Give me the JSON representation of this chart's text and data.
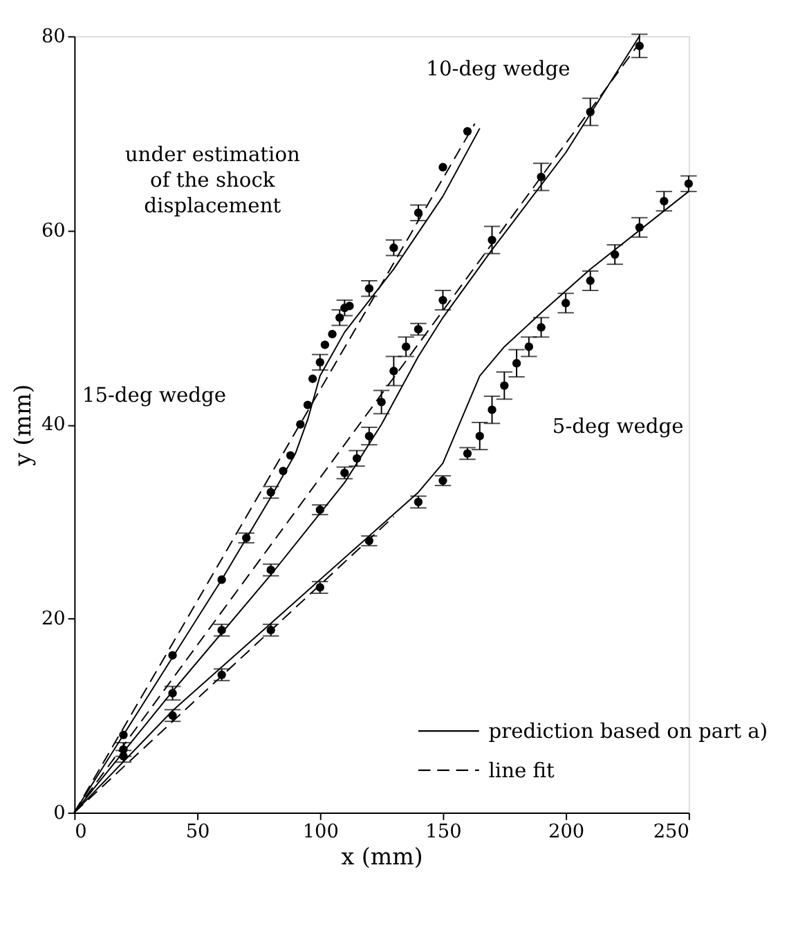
{
  "chart_data": {
    "type": "scatter",
    "xlabel": "x (mm)",
    "ylabel": "y (mm)",
    "xlim": [
      0,
      250
    ],
    "ylim": [
      0,
      80
    ],
    "xticks": [
      0,
      50,
      100,
      150,
      200,
      250
    ],
    "yticks": [
      0,
      20,
      40,
      60,
      80
    ],
    "grid": false,
    "legend": "bottom right",
    "series": [
      {
        "color": "#000000",
        "marker": "circle",
        "x": [
          20,
          40,
          60,
          70,
          80,
          85,
          88,
          92,
          95,
          97,
          100,
          102,
          105,
          108,
          110,
          112,
          120,
          130,
          140,
          150,
          160
        ],
        "values": [
          8,
          16.2,
          24,
          28.3,
          33,
          35.2,
          36.8,
          40,
          42,
          44.7,
          46.4,
          48.2,
          49.3,
          51,
          52,
          52.2,
          54,
          58.2,
          61.8,
          66.5,
          70.2
        ],
        "errors": [
          null,
          null,
          null,
          0.5,
          0.6,
          null,
          null,
          null,
          null,
          null,
          0.8,
          null,
          null,
          0.8,
          0.8,
          null,
          0.8,
          0.8,
          0.8,
          null,
          null
        ]
      },
      {
        "color": "#000000",
        "marker": "circle",
        "x": [
          20,
          40,
          60,
          80,
          100,
          110,
          115,
          120,
          125,
          130,
          135,
          140,
          150,
          170,
          190,
          210,
          230
        ],
        "values": [
          6.5,
          12.3,
          18.8,
          25,
          31.2,
          35,
          36.5,
          38.8,
          42.3,
          45.5,
          48,
          49.8,
          52.8,
          59,
          65.5,
          72.2,
          79
        ],
        "errors": [
          0.7,
          0.7,
          0.6,
          0.6,
          0.5,
          0.6,
          0.8,
          0.9,
          1.2,
          1.5,
          1,
          0.6,
          1,
          1.4,
          1.4,
          1.4,
          1.2
        ]
      },
      {
        "color": "#000000",
        "marker": "circle",
        "x": [
          20,
          40,
          60,
          80,
          100,
          120,
          140,
          150,
          160,
          165,
          170,
          175,
          180,
          185,
          190,
          200,
          210,
          220,
          230,
          240,
          250
        ],
        "values": [
          5.8,
          10,
          14.2,
          18.8,
          23.2,
          28,
          32,
          34.2,
          37,
          38.8,
          41.5,
          44,
          46.3,
          48,
          50,
          52.5,
          54.8,
          57.5,
          60.3,
          63,
          64.8
        ],
        "errors": [
          0.6,
          0.6,
          0.6,
          0.6,
          0.6,
          0.5,
          0.6,
          0.5,
          0.6,
          1.4,
          1.4,
          1.4,
          1.4,
          1,
          1,
          1,
          1,
          1,
          1,
          1,
          0.8
        ]
      },
      {
        "type": "line",
        "name": "prediction based on part a)",
        "color": "#000000",
        "line_style": "solid",
        "marker": "none",
        "x": [
          0,
          20,
          40,
          60,
          80,
          90,
          95,
          100,
          110,
          130,
          150,
          165
        ],
        "values": [
          0,
          8,
          16,
          24,
          32.5,
          37,
          40.5,
          45,
          49.5,
          56,
          63.5,
          70.5
        ]
      },
      {
        "type": "line",
        "color": "#000000",
        "line_style": "solid",
        "marker": "none",
        "x": [
          0,
          40,
          80,
          110,
          125,
          140,
          150,
          170,
          200,
          230
        ],
        "values": [
          0,
          12.5,
          24.5,
          34,
          40,
          47,
          51,
          58,
          68,
          80
        ]
      },
      {
        "type": "line",
        "color": "#000000",
        "line_style": "solid",
        "marker": "none",
        "x": [
          0,
          40,
          80,
          120,
          140,
          150,
          160,
          165,
          175,
          190,
          210,
          250
        ],
        "values": [
          0,
          10.5,
          19.5,
          28.5,
          33,
          36,
          42,
          45,
          48,
          51.5,
          56,
          64
        ]
      },
      {
        "type": "line",
        "name": "line fit",
        "color": "#000000",
        "line_style": "dashed",
        "marker": "none",
        "x": [
          0,
          163
        ],
        "values": [
          0,
          71
        ]
      },
      {
        "type": "line",
        "color": "#000000",
        "line_style": "dashed",
        "marker": "none",
        "x": [
          0,
          230
        ],
        "values": [
          0,
          79.3
        ]
      },
      {
        "type": "line",
        "color": "#000000",
        "line_style": "dashed",
        "marker": "none",
        "x": [
          0,
          130
        ],
        "values": [
          0,
          30.5
        ]
      }
    ],
    "annotations": [
      "15-deg wedge",
      "10-deg wedge",
      "5-deg wedge",
      "under estimation\nof the shock\ndisplacement"
    ]
  }
}
